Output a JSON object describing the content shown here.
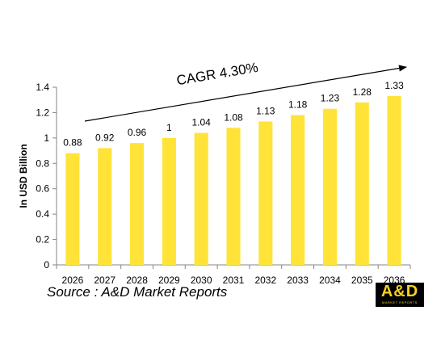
{
  "chart_data": {
    "type": "bar",
    "categories": [
      "2026",
      "2027",
      "2028",
      "2029",
      "2030",
      "2031",
      "2032",
      "2033",
      "2034",
      "2035",
      "2036"
    ],
    "values": [
      0.88,
      0.92,
      0.96,
      1,
      1.04,
      1.08,
      1.13,
      1.18,
      1.23,
      1.28,
      1.33
    ],
    "value_labels": [
      "0.88",
      "0.92",
      "0.96",
      "1",
      "1.04",
      "1.08",
      "1.13",
      "1.18",
      "1.23",
      "1.28",
      "1.33"
    ],
    "ylabel": "In USD Billion",
    "ylim": [
      0,
      1.4
    ],
    "yticks": [
      "0",
      "0.2",
      "0.4",
      "0.6",
      "0.8",
      "1",
      "1.2",
      "1.4"
    ],
    "grid": false,
    "bar_color": "#ffe338",
    "annotation": "CAGR 4.30%"
  },
  "source_text": "Source : A&D Market Reports",
  "logo": {
    "text": "A&D",
    "subtext": "MARKET REPORTS",
    "background": "#000000",
    "color": "#f6d11f"
  }
}
